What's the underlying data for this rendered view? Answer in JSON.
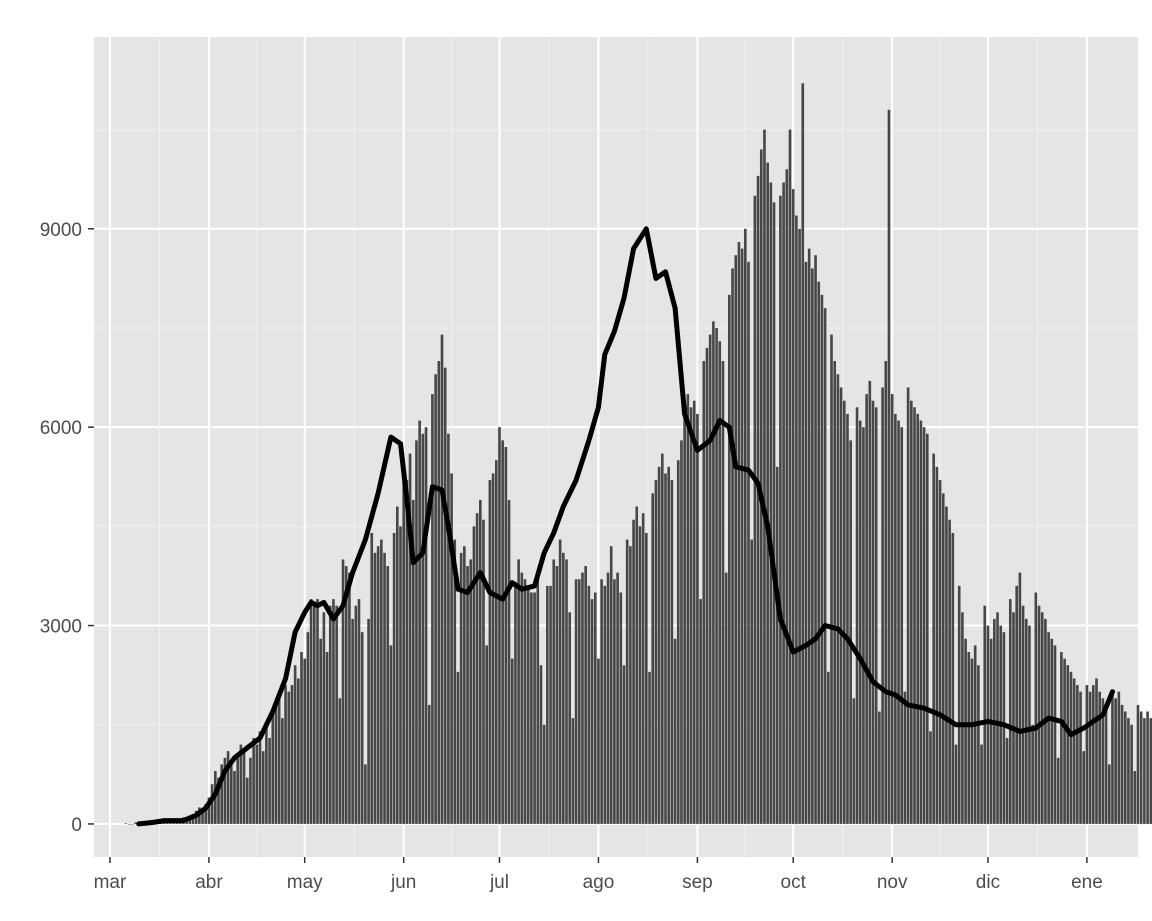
{
  "chart_data": {
    "type": "bar",
    "title": "",
    "xlabel": "",
    "ylabel": "",
    "x_axis": {
      "type": "date",
      "range": [
        "2020-02-25",
        "2021-01-17"
      ],
      "ticks": [
        {
          "date": "2020-03-01",
          "label": "mar"
        },
        {
          "date": "2020-04-01",
          "label": "abr"
        },
        {
          "date": "2020-05-01",
          "label": "may"
        },
        {
          "date": "2020-06-01",
          "label": "jun"
        },
        {
          "date": "2020-07-01",
          "label": "jul"
        },
        {
          "date": "2020-08-01",
          "label": "ago"
        },
        {
          "date": "2020-09-01",
          "label": "sep"
        },
        {
          "date": "2020-10-01",
          "label": "oct"
        },
        {
          "date": "2020-11-01",
          "label": "nov"
        },
        {
          "date": "2020-12-01",
          "label": "dic"
        },
        {
          "date": "2021-01-01",
          "label": "ene"
        }
      ]
    },
    "y_axis": {
      "range": [
        -500,
        11900
      ],
      "ticks": [
        0,
        3000,
        6000,
        9000
      ],
      "tick_labels": [
        "0",
        "3000",
        "6000",
        "9000"
      ]
    },
    "grid": true,
    "panel_background": "#e5e5e5",
    "bar_color": "#474747",
    "line_color": "#000000",
    "bar_start_date": "2020-03-06",
    "bar_values": [
      10,
      0,
      0,
      20,
      0,
      20,
      40,
      30,
      60,
      40,
      50,
      40,
      60,
      80,
      60,
      50,
      70,
      60,
      100,
      70,
      120,
      150,
      200,
      250,
      200,
      300,
      400,
      600,
      800,
      700,
      900,
      1000,
      1100,
      900,
      800,
      1000,
      1200,
      1100,
      700,
      1000,
      1300,
      1200,
      1400,
      1100,
      1500,
      1300,
      1700,
      1800,
      1900,
      1600,
      2100,
      2000,
      2100,
      2400,
      2200,
      2600,
      2500,
      2900,
      3400,
      3300,
      3400,
      2800,
      3200,
      2600,
      3300,
      3400,
      3300,
      1900,
      4000,
      3900,
      3800,
      3100,
      3300,
      3400,
      2900,
      900,
      3100,
      4400,
      4100,
      4200,
      4300,
      4100,
      3900,
      2700,
      4400,
      4800,
      4500,
      5200,
      5200,
      5600,
      4900,
      5800,
      6100,
      5900,
      6000,
      1800,
      6500,
      6800,
      7000,
      7400,
      6900,
      5900,
      5300,
      4300,
      2300,
      4100,
      4200,
      3900,
      4000,
      4500,
      4700,
      4900,
      4600,
      2700,
      5200,
      5300,
      5500,
      6000,
      5800,
      5700,
      4900,
      2500,
      3600,
      4000,
      3800,
      3700,
      3600,
      3500,
      3500,
      3700,
      2400,
      1500,
      3600,
      3600,
      4000,
      3900,
      4300,
      4100,
      4000,
      3200,
      1600,
      3700,
      3700,
      3800,
      3900,
      3600,
      3400,
      3500,
      2500,
      3700,
      3600,
      3800,
      4200,
      3700,
      3800,
      3500,
      2400,
      4300,
      4200,
      4600,
      4800,
      4500,
      4700,
      4400,
      2300,
      5000,
      5200,
      5400,
      5600,
      5300,
      5400,
      5200,
      2800,
      5500,
      5800,
      6200,
      6500,
      6300,
      6400,
      6200,
      3400,
      7000,
      7200,
      7400,
      7600,
      7500,
      7300,
      7000,
      3800,
      8000,
      8400,
      8600,
      8800,
      8700,
      9000,
      8500,
      4300,
      9500,
      9800,
      10200,
      10500,
      10000,
      9700,
      9400,
      5400,
      9500,
      9700,
      9900,
      10500,
      9600,
      9200,
      9000,
      11200,
      8500,
      8700,
      8400,
      8600,
      8200,
      8000,
      7800,
      2300,
      7400,
      7000,
      6800,
      6600,
      6400,
      6200,
      5800,
      1900,
      6300,
      6100,
      6000,
      6500,
      6700,
      6400,
      6300,
      1700,
      6600,
      7000,
      10800,
      6500,
      6200,
      6100,
      6000,
      2000,
      6600,
      6400,
      6300,
      6200,
      6100,
      6000,
      5900,
      1400,
      5600,
      5400,
      5200,
      5000,
      4800,
      4600,
      4400,
      1200,
      3600,
      3200,
      2800,
      2600,
      2500,
      2700,
      2400,
      1200,
      3300,
      3000,
      2800,
      3100,
      3200,
      3000,
      2900,
      1300,
      3400,
      3200,
      3600,
      3800,
      3300,
      3100,
      3000,
      1500,
      3500,
      3300,
      3200,
      3100,
      2900,
      2800,
      2700,
      1000,
      2600,
      2500,
      2400,
      2300,
      2200,
      2100,
      2000,
      1100,
      2100,
      2000,
      2100,
      2200,
      2000,
      1900,
      1800,
      900,
      2000,
      1900,
      2000,
      1800,
      1700,
      1600,
      1500,
      800,
      1800,
      1700,
      1600,
      1700,
      1600,
      1500,
      1400,
      900,
      1700,
      1600,
      1500,
      1600,
      1500,
      1400,
      1300,
      1000,
      1700,
      1500,
      1600,
      1500,
      1400,
      1300,
      1200,
      800,
      1700,
      1600,
      1700,
      1800,
      1600,
      1700,
      1800,
      900,
      1800,
      1700,
      1800,
      1600,
      1500,
      1400,
      1300,
      700,
      1700,
      1600,
      1800,
      1700,
      1500,
      1400,
      1300,
      800,
      1600,
      1700,
      2000,
      2200,
      2300,
      2600,
      2400,
      1600
    ],
    "series": [
      {
        "kind": "line",
        "points": [
          [
            "2020-03-10",
            0
          ],
          [
            "2020-03-14",
            20
          ],
          [
            "2020-03-18",
            50
          ],
          [
            "2020-03-24",
            50
          ],
          [
            "2020-03-28",
            130
          ],
          [
            "2020-03-31",
            240
          ],
          [
            "2020-04-03",
            450
          ],
          [
            "2020-04-06",
            800
          ],
          [
            "2020-04-09",
            1000
          ],
          [
            "2020-04-13",
            1150
          ],
          [
            "2020-04-17",
            1300
          ],
          [
            "2020-04-21",
            1700
          ],
          [
            "2020-04-25",
            2200
          ],
          [
            "2020-04-28",
            2900
          ],
          [
            "2020-05-01",
            3200
          ],
          [
            "2020-05-03",
            3350
          ],
          [
            "2020-05-05",
            3300
          ],
          [
            "2020-05-07",
            3350
          ],
          [
            "2020-05-10",
            3100
          ],
          [
            "2020-05-13",
            3300
          ],
          [
            "2020-05-16",
            3800
          ],
          [
            "2020-05-20",
            4300
          ],
          [
            "2020-05-24",
            5000
          ],
          [
            "2020-05-28",
            5850
          ],
          [
            "2020-05-31",
            5750
          ],
          [
            "2020-06-02",
            4900
          ],
          [
            "2020-06-04",
            3950
          ],
          [
            "2020-06-07",
            4100
          ],
          [
            "2020-06-10",
            5100
          ],
          [
            "2020-06-13",
            5050
          ],
          [
            "2020-06-15",
            4500
          ],
          [
            "2020-06-18",
            3550
          ],
          [
            "2020-06-21",
            3500
          ],
          [
            "2020-06-25",
            3800
          ],
          [
            "2020-06-28",
            3500
          ],
          [
            "2020-07-02",
            3400
          ],
          [
            "2020-07-05",
            3650
          ],
          [
            "2020-07-08",
            3550
          ],
          [
            "2020-07-12",
            3600
          ],
          [
            "2020-07-15",
            4100
          ],
          [
            "2020-07-18",
            4400
          ],
          [
            "2020-07-21",
            4800
          ],
          [
            "2020-07-25",
            5200
          ],
          [
            "2020-07-29",
            5800
          ],
          [
            "2020-08-01",
            6300
          ],
          [
            "2020-08-03",
            7100
          ],
          [
            "2020-08-06",
            7450
          ],
          [
            "2020-08-09",
            7950
          ],
          [
            "2020-08-12",
            8700
          ],
          [
            "2020-08-16",
            9000
          ],
          [
            "2020-08-19",
            8250
          ],
          [
            "2020-08-22",
            8350
          ],
          [
            "2020-08-25",
            7800
          ],
          [
            "2020-08-28",
            6200
          ],
          [
            "2020-09-01",
            5650
          ],
          [
            "2020-09-05",
            5800
          ],
          [
            "2020-09-08",
            6100
          ],
          [
            "2020-09-11",
            6000
          ],
          [
            "2020-09-13",
            5400
          ],
          [
            "2020-09-17",
            5350
          ],
          [
            "2020-09-20",
            5150
          ],
          [
            "2020-09-23",
            4500
          ],
          [
            "2020-09-27",
            3100
          ],
          [
            "2020-10-01",
            2600
          ],
          [
            "2020-10-05",
            2700
          ],
          [
            "2020-10-08",
            2800
          ],
          [
            "2020-10-11",
            3000
          ],
          [
            "2020-10-15",
            2950
          ],
          [
            "2020-10-18",
            2800
          ],
          [
            "2020-10-22",
            2500
          ],
          [
            "2020-10-26",
            2150
          ],
          [
            "2020-10-30",
            2000
          ],
          [
            "2020-11-02",
            1950
          ],
          [
            "2020-11-06",
            1800
          ],
          [
            "2020-11-11",
            1750
          ],
          [
            "2020-11-16",
            1650
          ],
          [
            "2020-11-21",
            1500
          ],
          [
            "2020-11-26",
            1500
          ],
          [
            "2020-12-01",
            1550
          ],
          [
            "2020-12-06",
            1500
          ],
          [
            "2020-12-11",
            1400
          ],
          [
            "2020-12-16",
            1450
          ],
          [
            "2020-12-20",
            1600
          ],
          [
            "2020-12-24",
            1550
          ],
          [
            "2020-12-27",
            1350
          ],
          [
            "2020-12-31",
            1450
          ],
          [
            "2021-01-03",
            1550
          ],
          [
            "2021-01-06",
            1650
          ],
          [
            "2021-01-09",
            2000
          ]
        ]
      }
    ]
  }
}
